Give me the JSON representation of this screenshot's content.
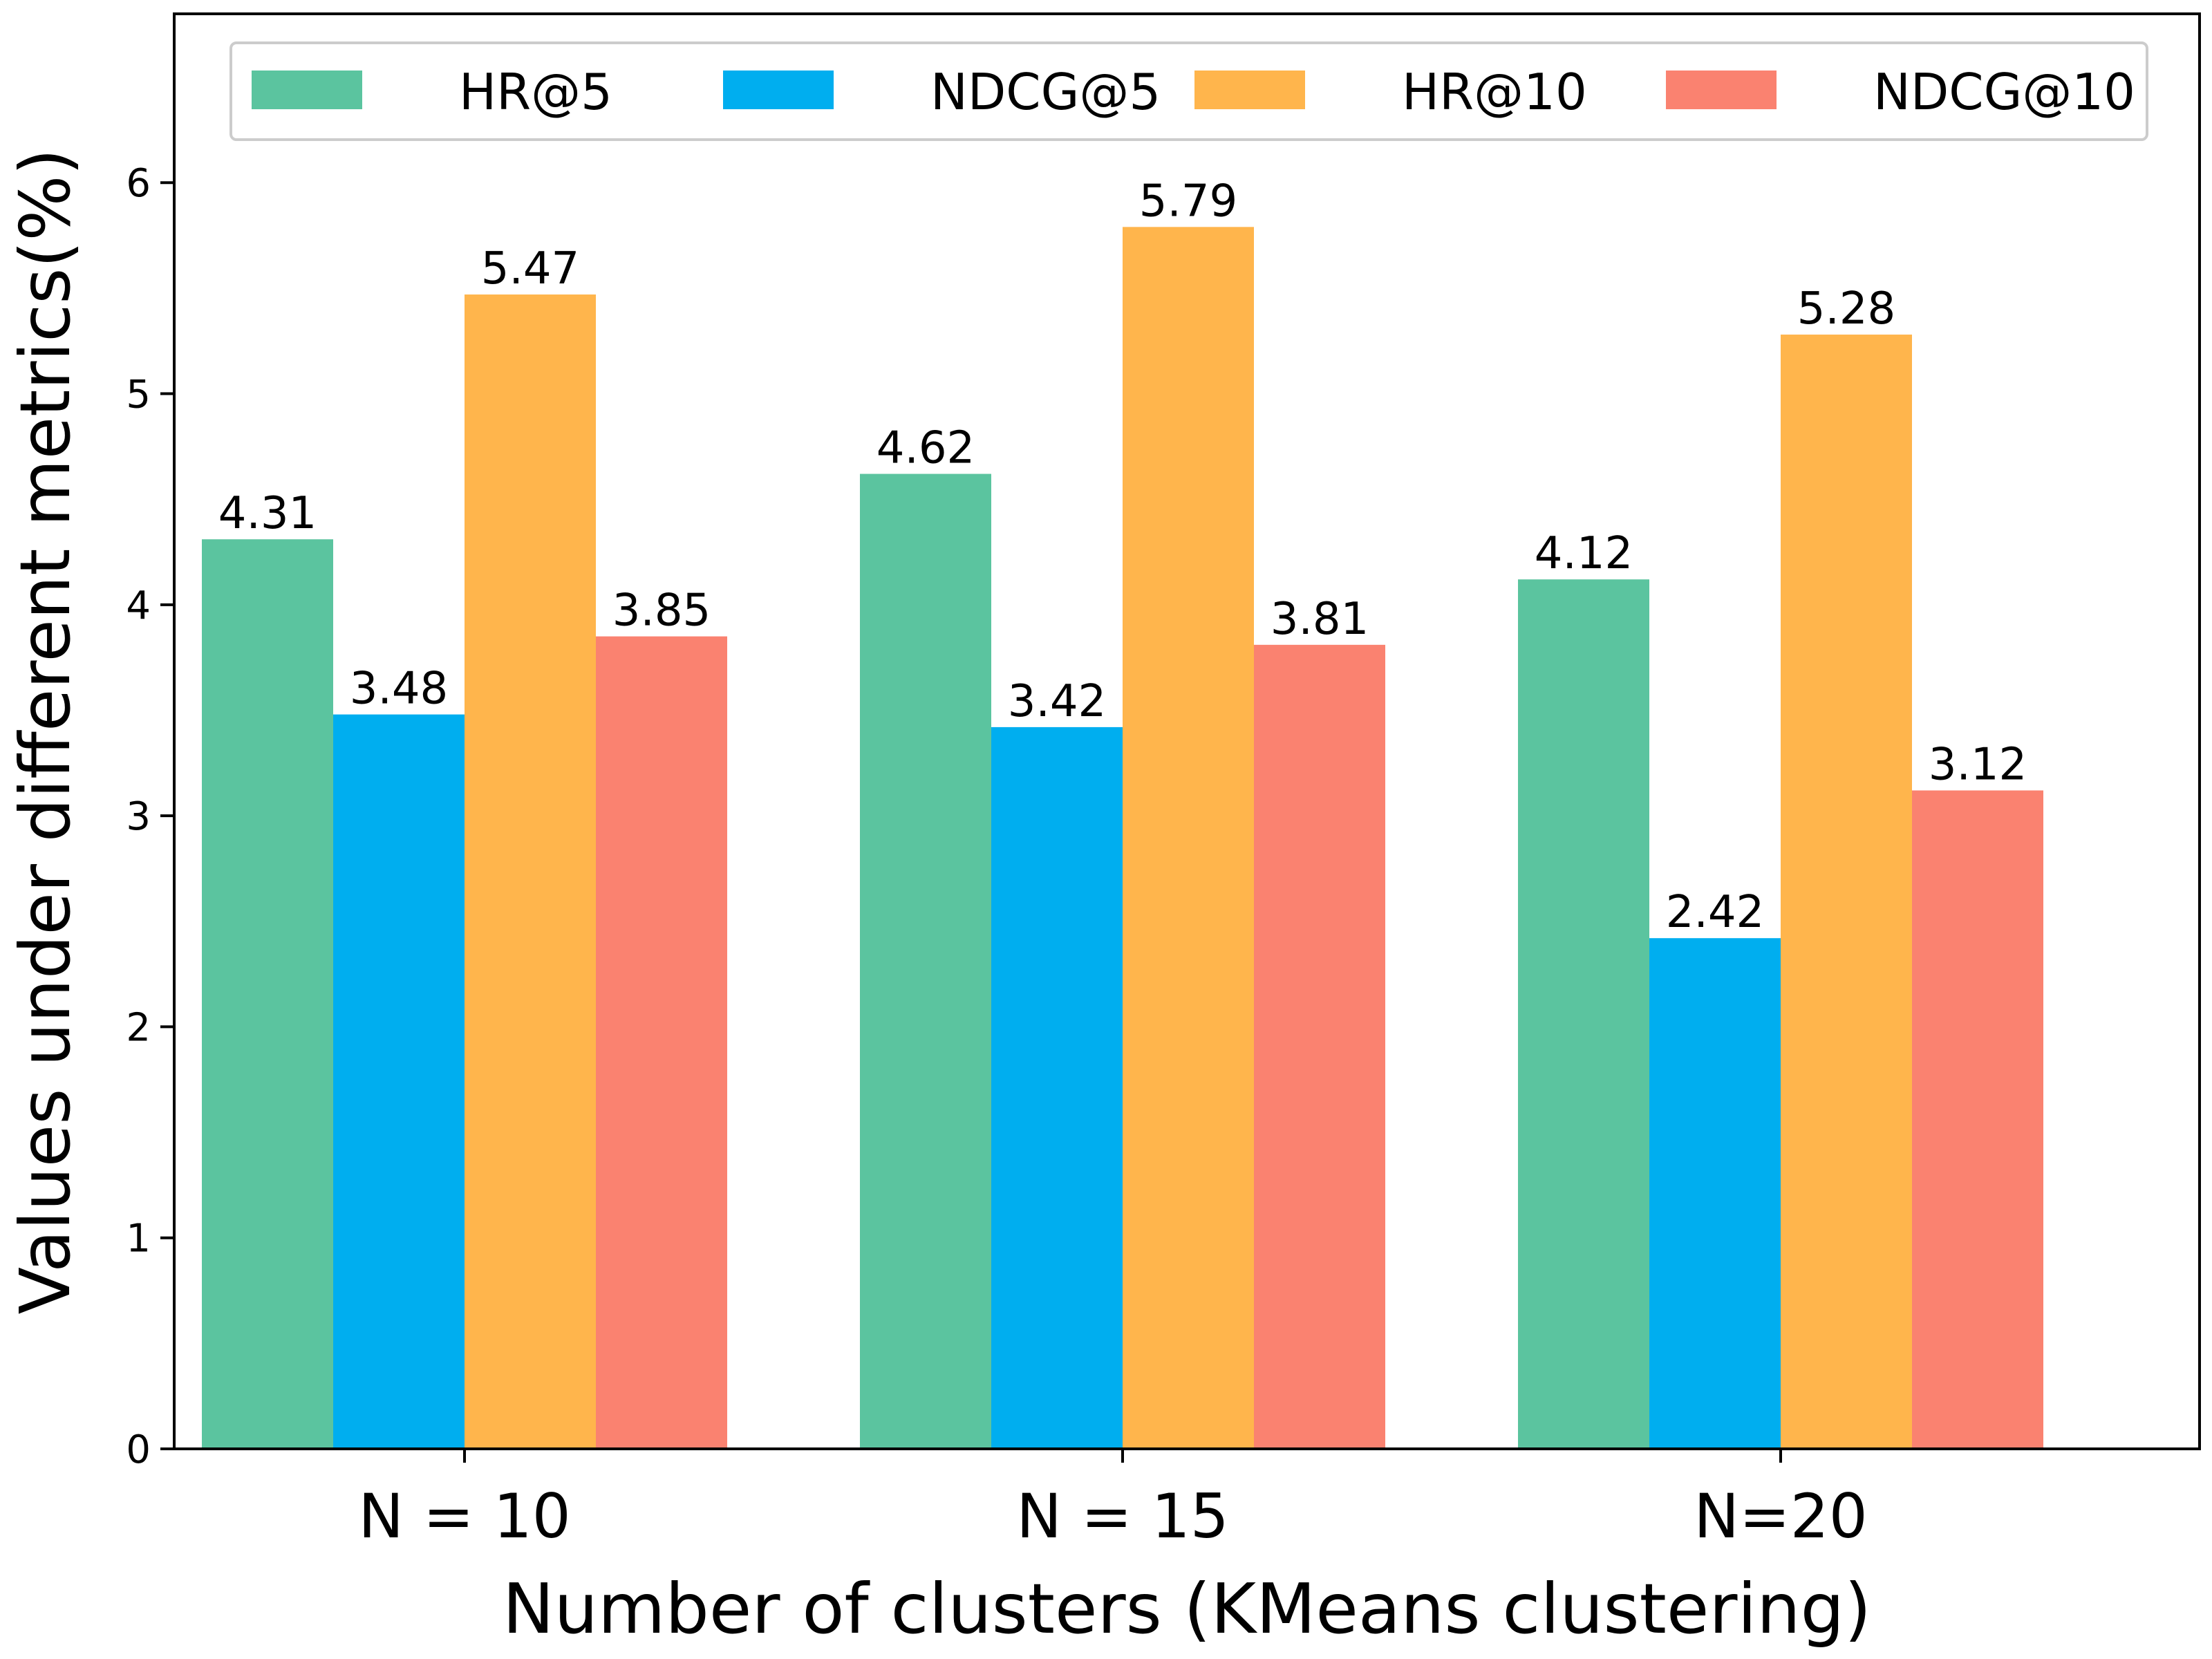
{
  "chart_data": {
    "type": "bar",
    "title": "",
    "xlabel": "Number of clusters (KMeans clustering)",
    "ylabel": "Values under different metrics(%)",
    "categories": [
      "N = 10",
      "N = 15",
      "N=20"
    ],
    "series": [
      {
        "name": "HR@5",
        "color": "#5BC49F",
        "values": [
          4.31,
          4.62,
          4.12
        ],
        "labels": [
          "4.31",
          "4.62",
          "4.12"
        ]
      },
      {
        "name": "NDCG@5",
        "color": "#00AEEF",
        "values": [
          3.48,
          3.42,
          2.42
        ],
        "labels": [
          "3.48",
          "3.42",
          "2.42"
        ]
      },
      {
        "name": "HR@10",
        "color": "#FFB54C",
        "values": [
          5.47,
          5.79,
          5.28
        ],
        "labels": [
          "5.47",
          "5.79",
          "5.28"
        ]
      },
      {
        "name": "NDCG@10",
        "color": "#FA8270",
        "values": [
          3.85,
          3.81,
          3.12
        ],
        "labels": [
          "3.85",
          "3.81",
          "3.12"
        ]
      }
    ],
    "ylim": [
      0,
      6.8
    ],
    "yticks": [
      0,
      1,
      2,
      3,
      4,
      5,
      6
    ],
    "ytick_labels": [
      "0",
      "1",
      "2",
      "3",
      "4",
      "5",
      "6"
    ],
    "grid": false,
    "legend_position": "top"
  }
}
